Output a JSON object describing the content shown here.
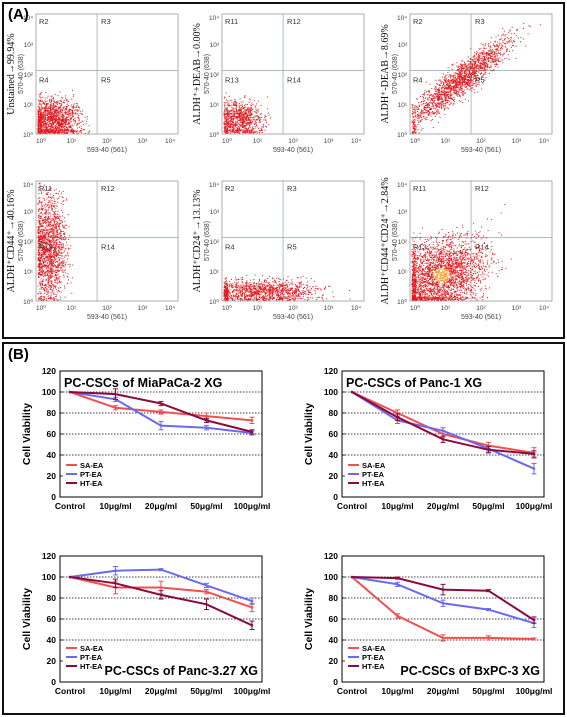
{
  "panel_a": {
    "label": "(A)",
    "x_axis_label": "593-40 (561)",
    "y_axis_label": "570-40 (638)",
    "log_ticks": [
      "10⁰",
      "10¹",
      "10²",
      "10³",
      "10⁴"
    ],
    "plots": [
      {
        "side_label": "Unstained→99.94%",
        "regions": [
          "R2",
          "R3",
          "R4",
          "R5"
        ],
        "population": "low-low"
      },
      {
        "side_label": "ALDH⁺+DEAB→0.00%",
        "regions": [
          "R11",
          "R12",
          "R13",
          "R14"
        ],
        "population": "low-low-small"
      },
      {
        "side_label": "ALDH⁺-DEAB→8.69%",
        "regions": [
          "R2",
          "R3",
          "R4",
          "R5"
        ],
        "population": "diagonal"
      },
      {
        "side_label": "ALDH⁺CD44⁺→40.16%",
        "regions": [
          "R11",
          "R12",
          "R13",
          "R14"
        ],
        "population": "vertical-left"
      },
      {
        "side_label": "ALDH⁺CD24⁺→13.13%",
        "regions": [
          "R2",
          "R3",
          "R4",
          "R5"
        ],
        "population": "horizontal-low"
      },
      {
        "side_label": "ALDH⁺CD44⁺CD24⁺→2.84%",
        "regions": [
          "R11",
          "R12",
          "R13",
          "R14"
        ],
        "population": "dense-low"
      }
    ]
  },
  "panel_b": {
    "label": "(B)",
    "y_axis_label": "Cell  Viability",
    "colors": {
      "SA-EA": "#f0504f",
      "PT-EA": "#6a6af0",
      "HT-EA": "#8b0a40"
    },
    "chart_data": [
      {
        "type": "line",
        "title": "PC-CSCs of MiaPaCa-2 XG",
        "categories": [
          "Control",
          "10μg/ml",
          "20μg/ml",
          "50μg/ml",
          "100μg/ml"
        ],
        "ylim": [
          0,
          120
        ],
        "yticks": [
          "0",
          "20",
          "40",
          "60",
          "80",
          "100",
          "120"
        ],
        "legend_position": "bottom-left",
        "series": [
          {
            "name": "SA-EA",
            "values": [
              100,
              85,
              81,
              77,
              73
            ],
            "errors": [
              0,
              2,
              2,
              3,
              3
            ]
          },
          {
            "name": "PT-EA",
            "values": [
              100,
              93,
              68,
              66,
              61
            ],
            "errors": [
              0,
              2,
              4,
              2,
              2
            ]
          },
          {
            "name": "HT-EA",
            "values": [
              100,
              98,
              89,
              73,
              62
            ],
            "errors": [
              0,
              5,
              2,
              2,
              2
            ]
          }
        ]
      },
      {
        "type": "line",
        "title": "PC-CSCs of Panc-1 XG",
        "categories": [
          "Control",
          "10μg/ml",
          "20μg/ml",
          "50μg/ml",
          "100μg/ml"
        ],
        "ylim": [
          0,
          120
        ],
        "yticks": [
          "0",
          "20",
          "40",
          "60",
          "80",
          "100",
          "120"
        ],
        "legend_position": "bottom-left",
        "series": [
          {
            "name": "SA-EA",
            "values": [
              100,
              80,
              60,
              49,
              42
            ],
            "errors": [
              0,
              3,
              3,
              3,
              5
            ]
          },
          {
            "name": "PT-EA",
            "values": [
              100,
              73,
              63,
              46,
              27
            ],
            "errors": [
              0,
              3,
              3,
              3,
              5
            ]
          },
          {
            "name": "HT-EA",
            "values": [
              100,
              76,
              55,
              45,
              41
            ],
            "errors": [
              0,
              3,
              3,
              3,
              3
            ]
          }
        ]
      },
      {
        "type": "line",
        "title": "PC-CSCs of Panc-3.27  XG",
        "categories": [
          "Control",
          "10μg/ml",
          "20μg/ml",
          "50μg/ml",
          "100μg/ml"
        ],
        "ylim": [
          0,
          120
        ],
        "yticks": [
          "0",
          "20",
          "40",
          "60",
          "80",
          "100",
          "120"
        ],
        "legend_position": "bottom-left",
        "series": [
          {
            "name": "SA-EA",
            "values": [
              100,
              90,
              90,
              86,
              71
            ],
            "errors": [
              0,
              6,
              6,
              2,
              4
            ]
          },
          {
            "name": "PT-EA",
            "values": [
              100,
              106,
              107,
              92,
              77
            ],
            "errors": [
              0,
              4,
              1,
              2,
              3
            ]
          },
          {
            "name": "HT-EA",
            "values": [
              100,
              94,
              83,
              74,
              54
            ],
            "errors": [
              0,
              4,
              4,
              5,
              4
            ]
          }
        ]
      },
      {
        "type": "line",
        "title": "PC-CSCs of BxPC-3  XG",
        "categories": [
          "Control",
          "10μg/ml",
          "20μg/ml",
          "50μg/ml",
          "100μg/ml"
        ],
        "ylim": [
          0,
          120
        ],
        "yticks": [
          "0",
          "20",
          "40",
          "60",
          "80",
          "100",
          "120"
        ],
        "legend_position": "bottom-left",
        "series": [
          {
            "name": "SA-EA",
            "values": [
              100,
              63,
              42,
              42,
              41
            ],
            "errors": [
              0,
              2,
              3,
              2,
              1
            ]
          },
          {
            "name": "PT-EA",
            "values": [
              100,
              93,
              75,
              69,
              56
            ],
            "errors": [
              0,
              2,
              3,
              1,
              4
            ]
          },
          {
            "name": "HT-EA",
            "values": [
              100,
              99,
              88,
              87,
              59
            ],
            "errors": [
              0,
              1,
              5,
              1,
              3
            ]
          }
        ]
      }
    ]
  }
}
